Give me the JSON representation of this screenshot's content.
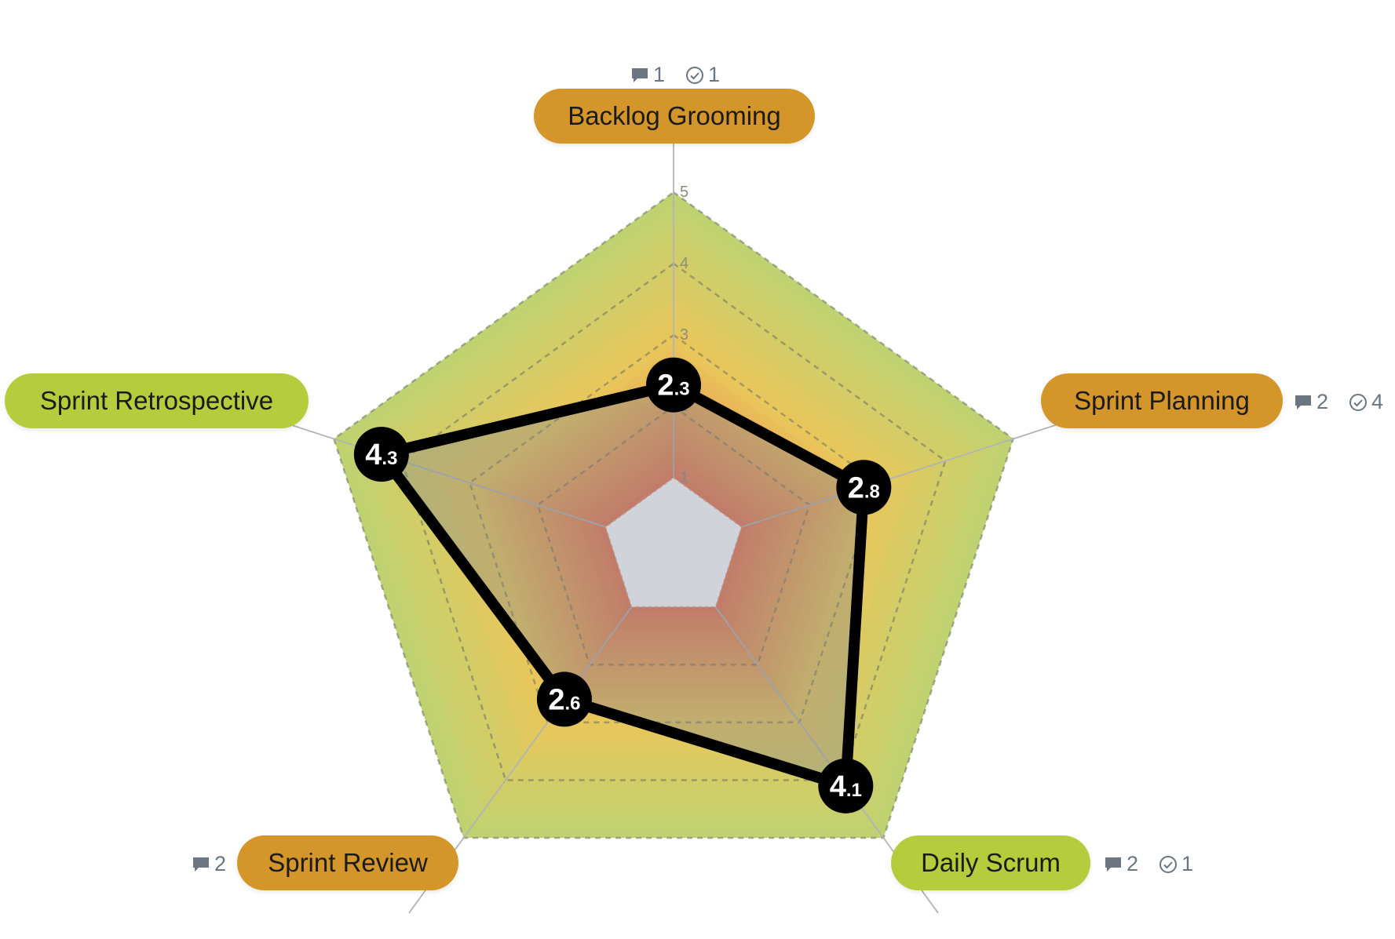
{
  "chart_data": {
    "type": "radar",
    "axis_ticks": [
      "1",
      "2",
      "3",
      "4",
      "5"
    ],
    "range": [
      0,
      5
    ],
    "categories": [
      {
        "name": "Backlog Grooming",
        "score": 2.3,
        "score_int": "2",
        "score_dec": ".3",
        "comments": "1",
        "actions": "1",
        "color": "#d4962a"
      },
      {
        "name": "Sprint Planning",
        "score": 2.8,
        "score_int": "2",
        "score_dec": ".8",
        "comments": "2",
        "actions": "4",
        "color": "#d4962a"
      },
      {
        "name": "Daily Scrum",
        "score": 4.1,
        "score_int": "4",
        "score_dec": ".1",
        "comments": "2",
        "actions": "1",
        "color": "#b5cc3c"
      },
      {
        "name": "Sprint Review",
        "score": 2.6,
        "score_int": "2",
        "score_dec": ".6",
        "comments": "2",
        "actions": "",
        "color": "#d4962a"
      },
      {
        "name": "Sprint Retrospective",
        "score": 4.3,
        "score_int": "4",
        "score_dec": ".3",
        "comments": "",
        "actions": "",
        "color": "#b5cc3c"
      }
    ],
    "band_colors": {
      "inner": "#e97852",
      "middle": "#e9c65a",
      "outer": "#bfd271"
    },
    "line_color": "#000000",
    "grid": true
  }
}
